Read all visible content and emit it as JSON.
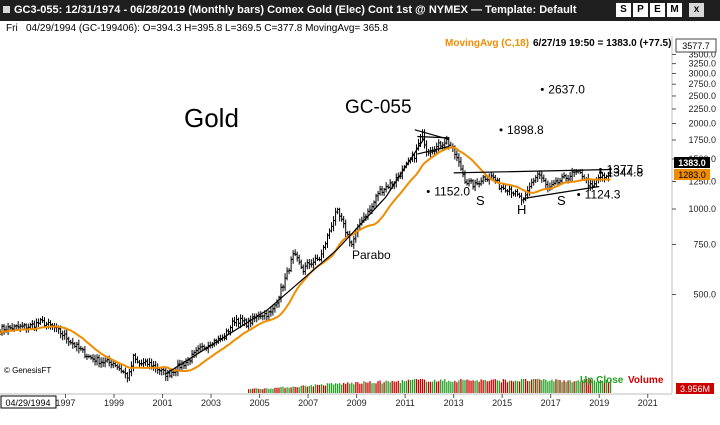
{
  "window": {
    "title": "GC3-055:  12/31/1974 - 06/28/2019  (Monthly bars)   Comex Gold (Elec) Cont 1st @ NYMEX  —  Template: Default",
    "buttons": [
      "S",
      "P",
      "E",
      "M",
      "x"
    ]
  },
  "infobar": {
    "label": "Fri",
    "ohlc": "04/29/1994 (GC-199406):  O=394.3  H=395.8  L=369.5  C=377.8  MovingAvg= 365.8",
    "ma_label": "MovingAvg (C,18)",
    "last": "6/27/19 19:50 = 1383.0 (+77.5)",
    "cursor_value": "3577.7"
  },
  "footer": {
    "date_box": "04/29/1994",
    "credit": "© GenesisFT",
    "up_close": "Up Close",
    "volume": "Volume",
    "volume_value": "3.956M"
  },
  "colors": {
    "ma": "#f08c00",
    "up_close": "#22a022",
    "volume": "#cc0000",
    "bar": "#000000"
  },
  "chart_data": {
    "type": "ohlc",
    "log_scale": true,
    "ylim": [
      225,
      4000
    ],
    "xlim": [
      1994.3,
      2022.0
    ],
    "y_ticks": [
      500,
      750,
      1000,
      1250,
      1500,
      1750,
      2000,
      2250,
      2500,
      2750,
      3000,
      3250,
      3500
    ],
    "x_ticks": [
      1997,
      1999,
      2001,
      2003,
      2005,
      2007,
      2009,
      2011,
      2013,
      2015,
      2017,
      2019,
      2021
    ],
    "close_series": [
      [
        1994.3,
        378
      ],
      [
        1995.0,
        383
      ],
      [
        1995.5,
        386
      ],
      [
        1996.0,
        400
      ],
      [
        1996.5,
        384
      ],
      [
        1997.0,
        355
      ],
      [
        1997.5,
        325
      ],
      [
        1998.0,
        300
      ],
      [
        1998.5,
        290
      ],
      [
        1999.0,
        287
      ],
      [
        1999.6,
        255
      ],
      [
        1999.8,
        300
      ],
      [
        2000.0,
        285
      ],
      [
        2000.5,
        285
      ],
      [
        2001.2,
        260
      ],
      [
        2001.7,
        280
      ],
      [
        2002.0,
        290
      ],
      [
        2002.5,
        318
      ],
      [
        2003.0,
        340
      ],
      [
        2003.5,
        350
      ],
      [
        2004.0,
        410
      ],
      [
        2004.5,
        395
      ],
      [
        2005.0,
        425
      ],
      [
        2005.5,
        430
      ],
      [
        2006.0,
        550
      ],
      [
        2006.4,
        690
      ],
      [
        2006.8,
        610
      ],
      [
        2007.0,
        640
      ],
      [
        2007.5,
        670
      ],
      [
        2008.0,
        900
      ],
      [
        2008.2,
        980
      ],
      [
        2008.8,
        750
      ],
      [
        2009.2,
        920
      ],
      [
        2009.6,
        1000
      ],
      [
        2009.9,
        1150
      ],
      [
        2010.5,
        1240
      ],
      [
        2011.0,
        1400
      ],
      [
        2011.4,
        1550
      ],
      [
        2011.7,
        1850
      ],
      [
        2011.9,
        1600
      ],
      [
        2012.3,
        1650
      ],
      [
        2012.7,
        1750
      ],
      [
        2013.0,
        1600
      ],
      [
        2013.3,
        1390
      ],
      [
        2013.5,
        1250
      ],
      [
        2013.9,
        1210
      ],
      [
        2014.2,
        1290
      ],
      [
        2014.6,
        1300
      ],
      [
        2014.9,
        1200
      ],
      [
        2015.3,
        1180
      ],
      [
        2015.9,
        1060
      ],
      [
        2016.2,
        1230
      ],
      [
        2016.5,
        1340
      ],
      [
        2016.9,
        1170
      ],
      [
        2017.4,
        1260
      ],
      [
        2017.7,
        1300
      ],
      [
        2018.0,
        1340
      ],
      [
        2018.3,
        1320
      ],
      [
        2018.7,
        1180
      ],
      [
        2019.0,
        1300
      ],
      [
        2019.3,
        1280
      ],
      [
        2019.49,
        1383
      ]
    ],
    "ma_length": 18,
    "annotations": {
      "title": "Gold",
      "code": "GC-055",
      "parabo": "Parabo",
      "shoulder_left": "S",
      "head": "H",
      "shoulder_right": "S"
    },
    "price_labels": [
      {
        "text": "2637.0",
        "x": 2016.9,
        "y": 2637
      },
      {
        "text": "1898.8",
        "x": 2015.2,
        "y": 1898.8
      },
      {
        "text": "1152.0",
        "x": 2012.2,
        "y": 1152
      },
      {
        "text": "1344.8",
        "x": 2019.3,
        "y": 1344.8
      },
      {
        "text": "1377.5",
        "x": 2019.3,
        "y": 1377.5
      },
      {
        "text": "1124.3",
        "x": 2018.4,
        "y": 1124.3
      }
    ],
    "current_price": "1383.0",
    "ma_value": "1283.0",
    "trendlines": [
      {
        "name": "parabolic-support",
        "points": [
          [
            2001.1,
            262
          ],
          [
            2005.3,
            440
          ],
          [
            2008.2,
            720
          ],
          [
            2010.2,
            1100
          ],
          [
            2011.8,
            1780
          ]
        ]
      },
      {
        "name": "neckline-top",
        "points": [
          [
            2013.0,
            1340
          ],
          [
            2019.5,
            1377
          ]
        ]
      },
      {
        "name": "neckline-bottom",
        "points": [
          [
            2015.9,
            1090
          ],
          [
            2019.0,
            1200
          ]
        ]
      },
      {
        "name": "triangle-top",
        "points": [
          [
            2011.4,
            1900
          ],
          [
            2012.8,
            1760
          ]
        ]
      },
      {
        "name": "triangle-upper",
        "points": [
          [
            2011.5,
            1800
          ],
          [
            2012.8,
            1780
          ]
        ]
      },
      {
        "name": "triangle-lower",
        "points": [
          [
            2011.5,
            1560
          ],
          [
            2012.8,
            1660
          ]
        ]
      }
    ],
    "volume_bars": [
      [
        2005.0,
        1.5
      ],
      [
        2006.0,
        2.0
      ],
      [
        2007.0,
        2.6
      ],
      [
        2008.0,
        3.2
      ],
      [
        2009.0,
        3.6
      ],
      [
        2010.0,
        3.9
      ],
      [
        2011.0,
        4.2
      ],
      [
        2011.7,
        4.8
      ],
      [
        2012.5,
        4.3
      ],
      [
        2013.5,
        4.6
      ],
      [
        2014.5,
        4.4
      ],
      [
        2015.5,
        4.5
      ],
      [
        2016.5,
        4.7
      ],
      [
        2017.5,
        4.4
      ],
      [
        2018.5,
        4.6
      ],
      [
        2019.3,
        4.2
      ]
    ],
    "volume_max": 5.0
  }
}
